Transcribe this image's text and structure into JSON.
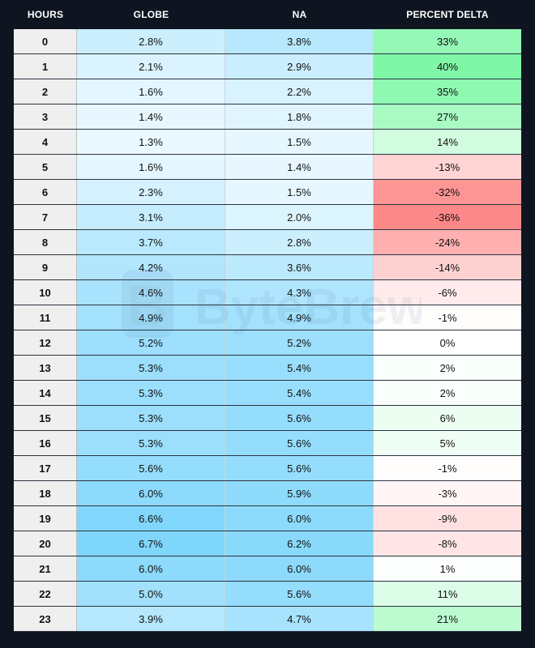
{
  "chart_data": {
    "type": "table",
    "columns": [
      "HOURS",
      "GLOBE",
      "NA",
      "PERCENT DELTA"
    ],
    "rows": [
      {
        "hours": "0",
        "globe": "2.8%",
        "na": "3.8%",
        "delta": "33%"
      },
      {
        "hours": "1",
        "globe": "2.1%",
        "na": "2.9%",
        "delta": "40%"
      },
      {
        "hours": "2",
        "globe": "1.6%",
        "na": "2.2%",
        "delta": "35%"
      },
      {
        "hours": "3",
        "globe": "1.4%",
        "na": "1.8%",
        "delta": "27%"
      },
      {
        "hours": "4",
        "globe": "1.3%",
        "na": "1.5%",
        "delta": "14%"
      },
      {
        "hours": "5",
        "globe": "1.6%",
        "na": "1.4%",
        "delta": "-13%"
      },
      {
        "hours": "6",
        "globe": "2.3%",
        "na": "1.5%",
        "delta": "-32%"
      },
      {
        "hours": "7",
        "globe": "3.1%",
        "na": "2.0%",
        "delta": "-36%"
      },
      {
        "hours": "8",
        "globe": "3.7%",
        "na": "2.8%",
        "delta": "-24%"
      },
      {
        "hours": "9",
        "globe": "4.2%",
        "na": "3.6%",
        "delta": "-14%"
      },
      {
        "hours": "10",
        "globe": "4.6%",
        "na": "4.3%",
        "delta": "-6%"
      },
      {
        "hours": "11",
        "globe": "4.9%",
        "na": "4.9%",
        "delta": "-1%"
      },
      {
        "hours": "12",
        "globe": "5.2%",
        "na": "5.2%",
        "delta": "0%"
      },
      {
        "hours": "13",
        "globe": "5.3%",
        "na": "5.4%",
        "delta": "2%"
      },
      {
        "hours": "14",
        "globe": "5.3%",
        "na": "5.4%",
        "delta": "2%"
      },
      {
        "hours": "15",
        "globe": "5.3%",
        "na": "5.6%",
        "delta": "6%"
      },
      {
        "hours": "16",
        "globe": "5.3%",
        "na": "5.6%",
        "delta": "5%"
      },
      {
        "hours": "17",
        "globe": "5.6%",
        "na": "5.6%",
        "delta": "-1%"
      },
      {
        "hours": "18",
        "globe": "6.0%",
        "na": "5.9%",
        "delta": "-3%"
      },
      {
        "hours": "19",
        "globe": "6.6%",
        "na": "6.0%",
        "delta": "-9%"
      },
      {
        "hours": "20",
        "globe": "6.7%",
        "na": "6.2%",
        "delta": "-8%"
      },
      {
        "hours": "21",
        "globe": "6.0%",
        "na": "6.0%",
        "delta": "1%"
      },
      {
        "hours": "22",
        "globe": "5.0%",
        "na": "5.6%",
        "delta": "11%"
      },
      {
        "hours": "23",
        "globe": "3.9%",
        "na": "4.7%",
        "delta": "21%"
      }
    ],
    "colors": {
      "background": "#0f1520",
      "hours_cell": "#efefef",
      "blue_low": "#eaf8ff",
      "blue_high": "#7fd6fb",
      "green_max": "#7ff7a6",
      "red_max": "#fd7b7b",
      "neutral": "#ffffff"
    }
  },
  "watermark": {
    "logo_letter": "B",
    "text": "ByteBrew"
  }
}
